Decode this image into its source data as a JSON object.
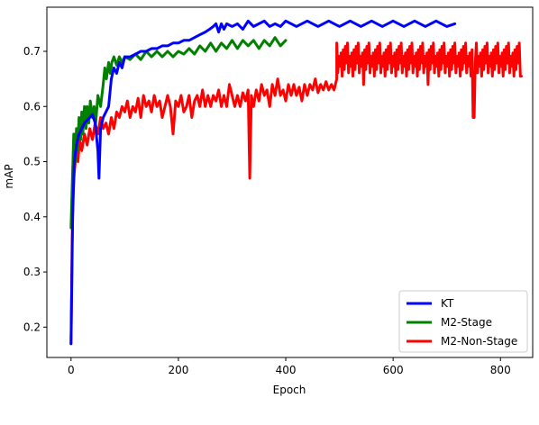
{
  "chart_data": {
    "type": "line",
    "title": "",
    "xlabel": "Epoch",
    "ylabel": "mAP",
    "xlim": [
      -45,
      860
    ],
    "ylim": [
      0.145,
      0.78
    ],
    "xticks": [
      0,
      200,
      400,
      600,
      800
    ],
    "yticks": [
      0.2,
      0.3,
      0.4,
      0.5,
      0.6,
      0.7
    ],
    "grid": false,
    "legend": "bottom-right",
    "series": [
      {
        "name": "KT",
        "color": "#0000ff",
        "x": [
          0,
          3,
          6,
          10,
          15,
          20,
          25,
          30,
          35,
          40,
          45,
          50,
          52,
          55,
          60,
          65,
          70,
          75,
          80,
          85,
          90,
          95,
          100,
          110,
          120,
          130,
          140,
          150,
          160,
          170,
          180,
          190,
          200,
          210,
          220,
          230,
          240,
          250,
          258,
          265,
          270,
          275,
          280,
          285,
          290,
          300,
          310,
          320,
          330,
          340,
          350,
          360,
          370,
          380,
          390,
          400,
          420,
          440,
          460,
          480,
          500,
          520,
          540,
          560,
          580,
          600,
          620,
          640,
          660,
          680,
          700,
          715
        ],
        "values": [
          0.17,
          0.4,
          0.5,
          0.53,
          0.55,
          0.56,
          0.57,
          0.575,
          0.58,
          0.585,
          0.57,
          0.52,
          0.47,
          0.56,
          0.58,
          0.59,
          0.6,
          0.65,
          0.67,
          0.66,
          0.68,
          0.67,
          0.69,
          0.69,
          0.695,
          0.7,
          0.7,
          0.705,
          0.705,
          0.71,
          0.71,
          0.715,
          0.715,
          0.72,
          0.72,
          0.725,
          0.73,
          0.735,
          0.74,
          0.745,
          0.75,
          0.735,
          0.75,
          0.74,
          0.75,
          0.745,
          0.75,
          0.74,
          0.755,
          0.745,
          0.75,
          0.755,
          0.745,
          0.75,
          0.745,
          0.755,
          0.745,
          0.755,
          0.745,
          0.755,
          0.745,
          0.755,
          0.745,
          0.755,
          0.745,
          0.755,
          0.745,
          0.755,
          0.745,
          0.755,
          0.745,
          0.75
        ]
      },
      {
        "name": "M2-Stage",
        "color": "#008000",
        "x": [
          0,
          2,
          5,
          8,
          10,
          12,
          15,
          18,
          20,
          22,
          25,
          28,
          30,
          33,
          36,
          40,
          43,
          46,
          50,
          55,
          60,
          63,
          66,
          70,
          73,
          76,
          80,
          85,
          90,
          95,
          100,
          110,
          120,
          130,
          140,
          150,
          160,
          170,
          180,
          190,
          200,
          210,
          220,
          230,
          240,
          250,
          260,
          270,
          280,
          290,
          300,
          310,
          320,
          330,
          340,
          350,
          360,
          370,
          380,
          390,
          400
        ],
        "values": [
          0.38,
          0.45,
          0.55,
          0.5,
          0.56,
          0.52,
          0.58,
          0.54,
          0.59,
          0.55,
          0.6,
          0.56,
          0.6,
          0.57,
          0.61,
          0.58,
          0.6,
          0.57,
          0.62,
          0.6,
          0.64,
          0.67,
          0.65,
          0.68,
          0.66,
          0.68,
          0.69,
          0.675,
          0.69,
          0.68,
          0.69,
          0.685,
          0.695,
          0.685,
          0.7,
          0.69,
          0.7,
          0.69,
          0.7,
          0.69,
          0.7,
          0.695,
          0.705,
          0.695,
          0.71,
          0.7,
          0.715,
          0.7,
          0.715,
          0.705,
          0.72,
          0.705,
          0.72,
          0.71,
          0.72,
          0.705,
          0.72,
          0.71,
          0.725,
          0.71,
          0.72
        ]
      },
      {
        "name": "M2-Non-Stage",
        "color": "#ff0000",
        "x": [
          0,
          2,
          4,
          6,
          8,
          10,
          13,
          16,
          20,
          25,
          30,
          35,
          40,
          45,
          50,
          55,
          60,
          65,
          70,
          75,
          80,
          85,
          90,
          95,
          100,
          105,
          110,
          115,
          120,
          125,
          130,
          135,
          140,
          145,
          150,
          155,
          160,
          165,
          170,
          175,
          180,
          185,
          190,
          195,
          200,
          205,
          210,
          215,
          220,
          225,
          230,
          235,
          240,
          245,
          250,
          255,
          260,
          265,
          270,
          275,
          280,
          285,
          290,
          295,
          300,
          305,
          310,
          315,
          320,
          325,
          330,
          333,
          336,
          340,
          345,
          350,
          355,
          360,
          365,
          370,
          375,
          380,
          385,
          390,
          395,
          400,
          405,
          410,
          415,
          420,
          425,
          430,
          435,
          440,
          445,
          450,
          455,
          460,
          465,
          470,
          475,
          480,
          485,
          490,
          495
        ],
        "values": [
          0.17,
          0.35,
          0.45,
          0.48,
          0.5,
          0.52,
          0.5,
          0.54,
          0.52,
          0.55,
          0.53,
          0.56,
          0.54,
          0.57,
          0.55,
          0.58,
          0.56,
          0.57,
          0.55,
          0.58,
          0.56,
          0.59,
          0.58,
          0.6,
          0.59,
          0.61,
          0.58,
          0.6,
          0.59,
          0.615,
          0.58,
          0.62,
          0.6,
          0.61,
          0.59,
          0.62,
          0.6,
          0.61,
          0.58,
          0.6,
          0.62,
          0.6,
          0.55,
          0.61,
          0.6,
          0.62,
          0.59,
          0.6,
          0.62,
          0.58,
          0.61,
          0.62,
          0.6,
          0.63,
          0.6,
          0.62,
          0.6,
          0.62,
          0.61,
          0.63,
          0.6,
          0.62,
          0.6,
          0.64,
          0.62,
          0.6,
          0.62,
          0.6,
          0.625,
          0.61,
          0.63,
          0.47,
          0.62,
          0.6,
          0.63,
          0.61,
          0.64,
          0.62,
          0.63,
          0.6,
          0.64,
          0.62,
          0.65,
          0.62,
          0.63,
          0.61,
          0.64,
          0.62,
          0.64,
          0.62,
          0.635,
          0.61,
          0.64,
          0.62,
          0.64,
          0.63,
          0.65,
          0.625,
          0.64,
          0.63,
          0.645,
          0.63,
          0.64,
          0.63,
          0.65
        ]
      }
    ],
    "m2_non_stage_band": {
      "x_range": [
        495,
        840
      ],
      "upper": 0.715,
      "lower": 0.655,
      "dips": [
        {
          "x": 750,
          "value": 0.58
        },
        {
          "x": 545,
          "value": 0.64
        },
        {
          "x": 665,
          "value": 0.64
        },
        {
          "x": 838,
          "value": 0.655
        }
      ]
    }
  }
}
